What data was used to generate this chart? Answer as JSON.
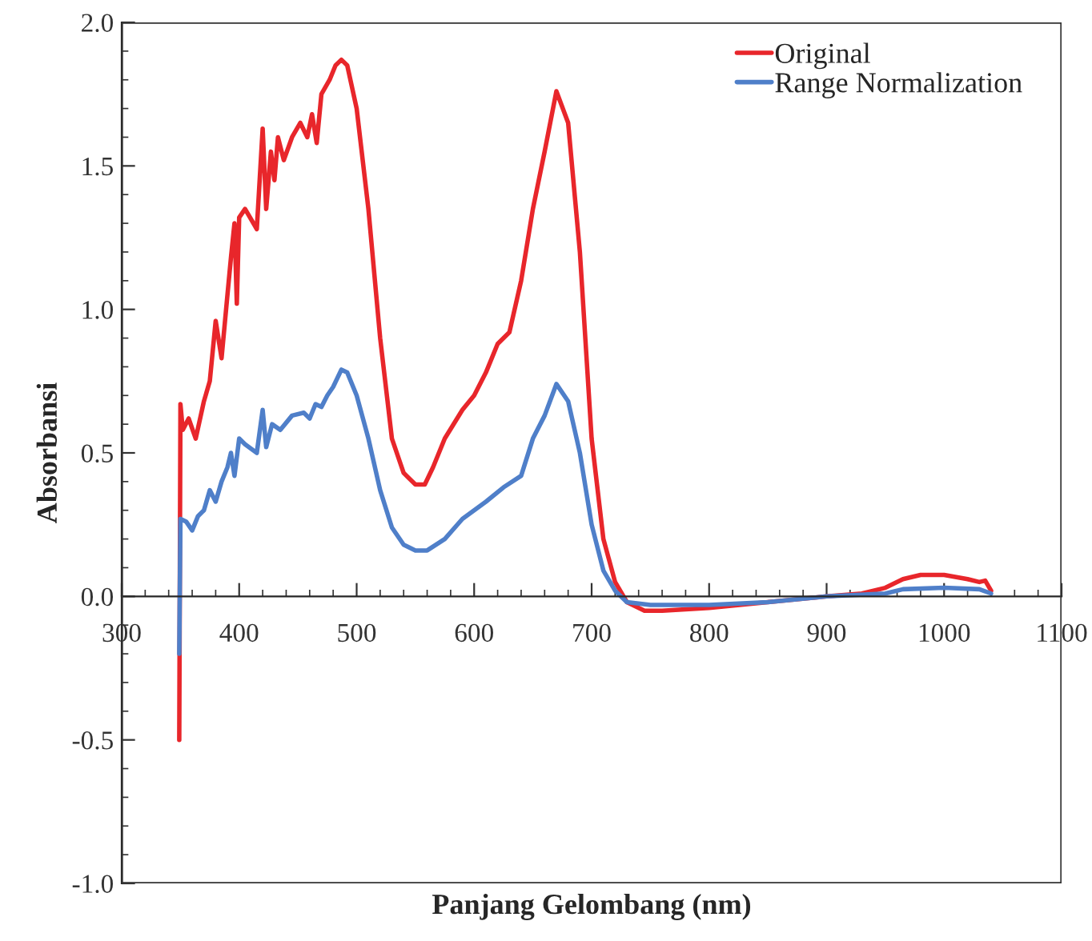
{
  "chart_data": {
    "type": "line",
    "xlabel": "Panjang Gelombang (nm)",
    "ylabel": "Absorbansi",
    "xlim": [
      300,
      1100
    ],
    "xticks": [
      300,
      400,
      500,
      600,
      700,
      800,
      900,
      1000,
      1100
    ],
    "ylim": [
      -1.0,
      2.0
    ],
    "yticks": [
      {
        "value": -1.0,
        "label": "-1.0"
      },
      {
        "value": -0.5,
        "label": "-0.5"
      },
      {
        "value": 0.0,
        "label": "0.0"
      },
      {
        "value": 0.5,
        "label": "0.5"
      },
      {
        "value": 1.0,
        "label": "1.0"
      },
      {
        "value": 1.5,
        "label": "1.5"
      },
      {
        "value": 2.0,
        "label": "2.0"
      }
    ],
    "grid": false,
    "legend": "top right",
    "marker": "none",
    "line_style": "solid",
    "series": [
      {
        "name": "Original",
        "color": "#e8262b",
        "x": [
          349,
          350,
          352,
          357,
          363,
          370,
          375,
          380,
          385,
          390,
          393,
          396,
          398,
          400,
          405,
          415,
          420,
          423,
          427,
          430,
          433,
          438,
          445,
          452,
          458,
          462,
          466,
          470,
          477,
          482,
          487,
          492,
          500,
          510,
          520,
          530,
          540,
          550,
          558,
          565,
          575,
          590,
          600,
          610,
          620,
          630,
          640,
          650,
          660,
          670,
          680,
          690,
          700,
          710,
          720,
          730,
          745,
          760,
          800,
          850,
          900,
          930,
          950,
          965,
          980,
          1000,
          1020,
          1030,
          1035,
          1040
        ],
        "values": [
          -0.5,
          0.67,
          0.58,
          0.62,
          0.55,
          0.68,
          0.75,
          0.96,
          0.83,
          1.05,
          1.18,
          1.3,
          1.02,
          1.32,
          1.35,
          1.28,
          1.63,
          1.35,
          1.55,
          1.45,
          1.6,
          1.52,
          1.6,
          1.65,
          1.6,
          1.68,
          1.58,
          1.75,
          1.8,
          1.85,
          1.87,
          1.85,
          1.7,
          1.35,
          0.9,
          0.55,
          0.43,
          0.39,
          0.39,
          0.45,
          0.55,
          0.65,
          0.7,
          0.78,
          0.88,
          0.92,
          1.1,
          1.35,
          1.55,
          1.76,
          1.65,
          1.2,
          0.55,
          0.2,
          0.05,
          -0.02,
          -0.05,
          -0.05,
          -0.04,
          -0.02,
          0.0,
          0.01,
          0.03,
          0.06,
          0.075,
          0.075,
          0.06,
          0.05,
          0.055,
          0.02
        ]
      },
      {
        "name": "Range Normalization",
        "color": "#4f7fc9",
        "x": [
          349,
          350,
          355,
          360,
          365,
          370,
          375,
          380,
          385,
          390,
          393,
          396,
          400,
          405,
          415,
          420,
          423,
          428,
          435,
          445,
          455,
          460,
          465,
          470,
          475,
          480,
          487,
          492,
          500,
          510,
          520,
          530,
          540,
          550,
          560,
          575,
          590,
          610,
          625,
          640,
          650,
          660,
          670,
          680,
          690,
          700,
          710,
          720,
          730,
          750,
          800,
          850,
          900,
          950,
          965,
          1000,
          1030,
          1040
        ],
        "values": [
          -0.2,
          0.27,
          0.26,
          0.23,
          0.28,
          0.3,
          0.37,
          0.33,
          0.4,
          0.45,
          0.5,
          0.42,
          0.55,
          0.53,
          0.5,
          0.65,
          0.52,
          0.6,
          0.58,
          0.63,
          0.64,
          0.62,
          0.67,
          0.66,
          0.7,
          0.73,
          0.79,
          0.78,
          0.7,
          0.55,
          0.37,
          0.24,
          0.18,
          0.16,
          0.16,
          0.2,
          0.27,
          0.33,
          0.38,
          0.42,
          0.55,
          0.63,
          0.74,
          0.68,
          0.5,
          0.25,
          0.09,
          0.02,
          -0.02,
          -0.03,
          -0.03,
          -0.02,
          0.0,
          0.01,
          0.025,
          0.03,
          0.025,
          0.01
        ]
      }
    ]
  }
}
